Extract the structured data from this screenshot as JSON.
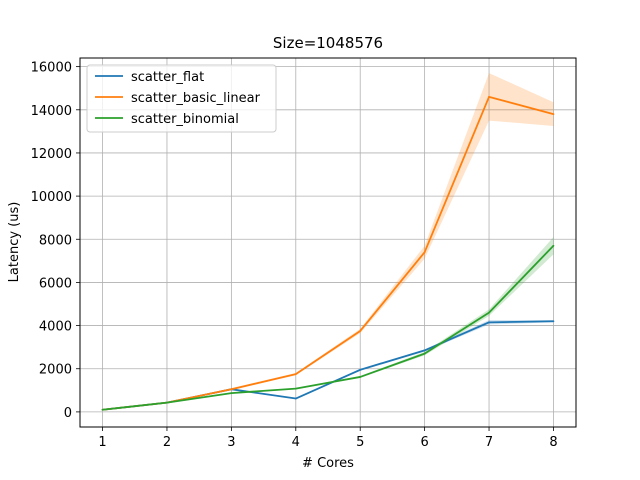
{
  "chart_data": {
    "type": "line",
    "title": "Size=1048576",
    "xlabel": "# Cores",
    "ylabel": "Latency (us)",
    "x": [
      1,
      2,
      3,
      4,
      5,
      6,
      7,
      8
    ],
    "xlim": [
      0.65,
      8.35
    ],
    "ylim": [
      -700,
      16400
    ],
    "yticks": [
      0,
      2000,
      4000,
      6000,
      8000,
      10000,
      12000,
      14000,
      16000
    ],
    "grid": true,
    "legend_position": "top-left",
    "series": [
      {
        "name": "scatter_flat",
        "color": "#1f77b4",
        "values": [
          100,
          430,
          1050,
          620,
          1950,
          2850,
          4150,
          4200
        ],
        "lower": [
          90,
          420,
          1000,
          600,
          1900,
          2800,
          4050,
          4150
        ],
        "upper": [
          110,
          440,
          1100,
          640,
          2000,
          2900,
          4250,
          4250
        ]
      },
      {
        "name": "scatter_basic_linear",
        "color": "#ff7f0e",
        "values": [
          100,
          430,
          1050,
          1750,
          3750,
          7400,
          14600,
          13800
        ],
        "lower": [
          90,
          410,
          1000,
          1700,
          3650,
          7100,
          13500,
          13250
        ],
        "upper": [
          110,
          450,
          1100,
          1800,
          3850,
          7700,
          15700,
          14350
        ]
      },
      {
        "name": "scatter_binomial",
        "color": "#2ca02c",
        "values": [
          100,
          430,
          870,
          1080,
          1620,
          2700,
          4600,
          7700
        ],
        "lower": [
          90,
          410,
          840,
          1050,
          1580,
          2620,
          4450,
          7300
        ],
        "upper": [
          110,
          450,
          900,
          1110,
          1660,
          2780,
          4750,
          8100
        ]
      }
    ]
  }
}
